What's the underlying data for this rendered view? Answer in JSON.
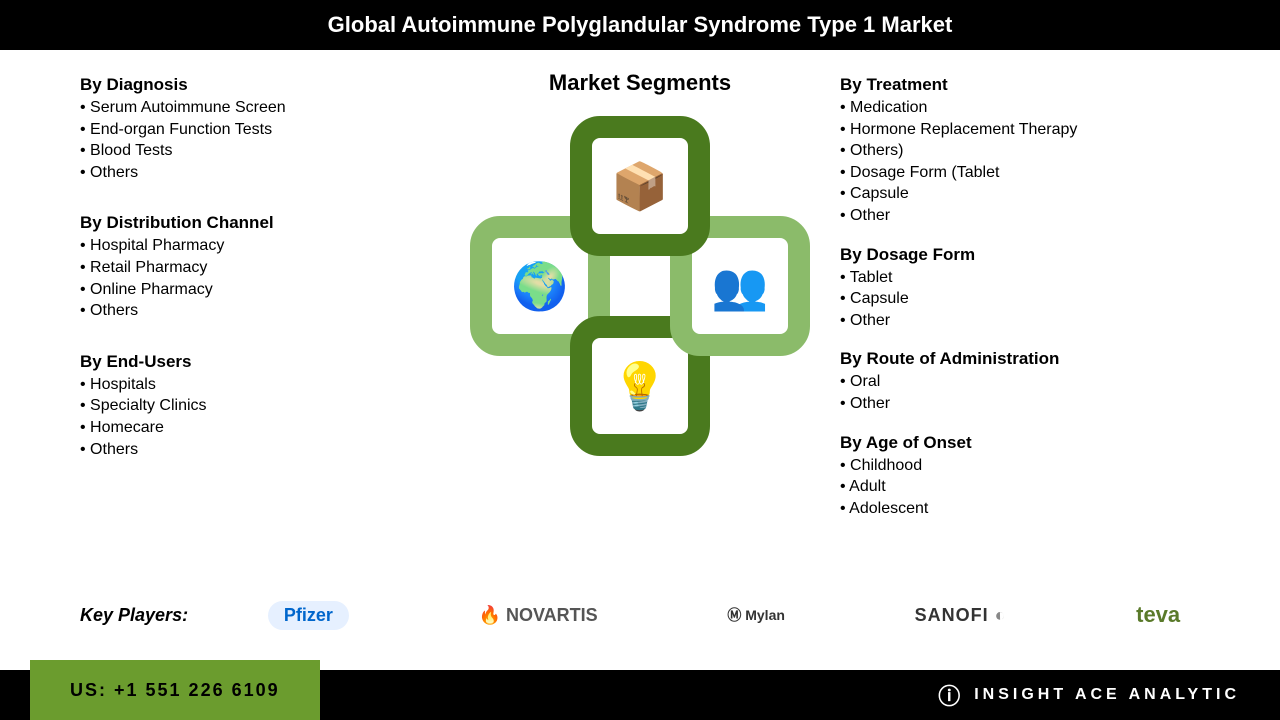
{
  "title": "Global Autoimmune Polyglandular Syndrome Type 1 Market",
  "center_title": "Market Segments",
  "segments_left": [
    {
      "heading": "By Diagnosis",
      "items": [
        "Serum Autoimmune Screen",
        "End-organ Function Tests",
        "Blood Tests",
        "Others"
      ]
    },
    {
      "heading": "By Distribution  Channel",
      "items": [
        "Hospital Pharmacy",
        "Retail Pharmacy",
        "Online Pharmacy",
        "Others"
      ]
    },
    {
      "heading": "By End-Users",
      "items": [
        "Hospitals",
        "Specialty Clinics",
        "Homecare",
        "Others"
      ]
    }
  ],
  "segments_right": [
    {
      "heading": "By Treatment",
      "items": [
        "Medication",
        "Hormone Replacement Therapy",
        "Others)",
        "Dosage Form (Tablet",
        "Capsule",
        "Other"
      ]
    },
    {
      "heading": "By Dosage Form",
      "items": [
        "Tablet",
        "Capsule",
        "Other"
      ]
    },
    {
      "heading": "By  Route of Administration",
      "items": [
        "Oral",
        "Other"
      ]
    },
    {
      "heading": "By Age of Onset",
      "items": [
        "Childhood",
        "Adult",
        "Adolescent"
      ]
    }
  ],
  "key_players_label": "Key Players:",
  "key_players": [
    {
      "name": "Pfizer",
      "class": "logo-pfizer"
    },
    {
      "name": "NOVARTIS",
      "class": "logo-novartis"
    },
    {
      "name": "Ⓜ Mylan",
      "class": "logo-mylan"
    },
    {
      "name": "SANOFI",
      "class": "logo-sanofi"
    },
    {
      "name": "teva",
      "class": "logo-teva"
    }
  ],
  "footer_phone": "US: +1 551 226 6109",
  "footer_brand": "INSIGHT ACE ANALYTIC",
  "graphic": {
    "icons": {
      "top": "📦",
      "bottom": "💡",
      "left": "🌍",
      "right": "👥"
    },
    "dark_color": "#4a7a1e",
    "light_color": "#8bbb6a"
  }
}
